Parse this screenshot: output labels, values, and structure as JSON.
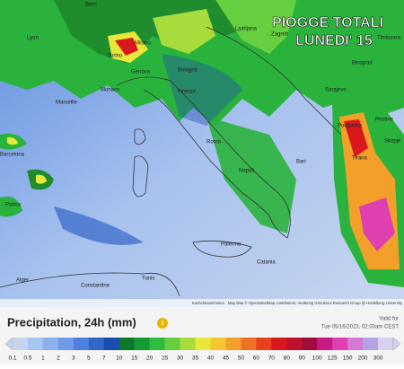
{
  "overlay": {
    "title_line1": "PIOGGE TOTALI",
    "title_line2": "LUNEDI' 15"
  },
  "cities": [
    "Bern",
    "Lyon",
    "Milano",
    "Torino",
    "Genova",
    "Monaco",
    "Bologna",
    "Firenze",
    "Ljubljana",
    "Zagreb",
    "Beograd",
    "Timisoara",
    "Sarajevo",
    "Podgorica",
    "Pristine",
    "Skopje",
    "Tirana",
    "Roma",
    "Napoli",
    "Bari",
    "Palermo",
    "Catania",
    "Marseille",
    "Barcelona",
    "Palma",
    "Alger",
    "Tunis",
    "Constantine"
  ],
  "attribution": "Kachelmann/meteo · Map data © OpenStreetMap contributors, rendering GIScience Research Group @ Heidelberg University",
  "legend": {
    "title": "Precipitation, 24h (mm)",
    "valid_label": "Valid for",
    "valid_time": "Tue 05/16/2023, 02:00am CEST",
    "labels": [
      "0.1",
      "0.5",
      "1",
      "2",
      "3",
      "5",
      "7",
      "10",
      "15",
      "20",
      "25",
      "30",
      "35",
      "40",
      "45",
      "50",
      "60",
      "70",
      "80",
      "90",
      "100",
      "125",
      "150",
      "200",
      "300"
    ],
    "colors": [
      "#c8d4ec",
      "#a9c4ef",
      "#8cb0ef",
      "#6f9ae9",
      "#4f7fdc",
      "#3565c9",
      "#1d4cb0",
      "#0a7a2a",
      "#149c32",
      "#2ebd3e",
      "#66cf3f",
      "#a7dc3c",
      "#e8e83a",
      "#f6c630",
      "#f3a02a",
      "#ee7225",
      "#e8411f",
      "#d9181e",
      "#c0102c",
      "#a00c3e",
      "#c81a80",
      "#e03fb0",
      "#d27ad6",
      "#b5a2e0",
      "#d8d0f0"
    ]
  }
}
